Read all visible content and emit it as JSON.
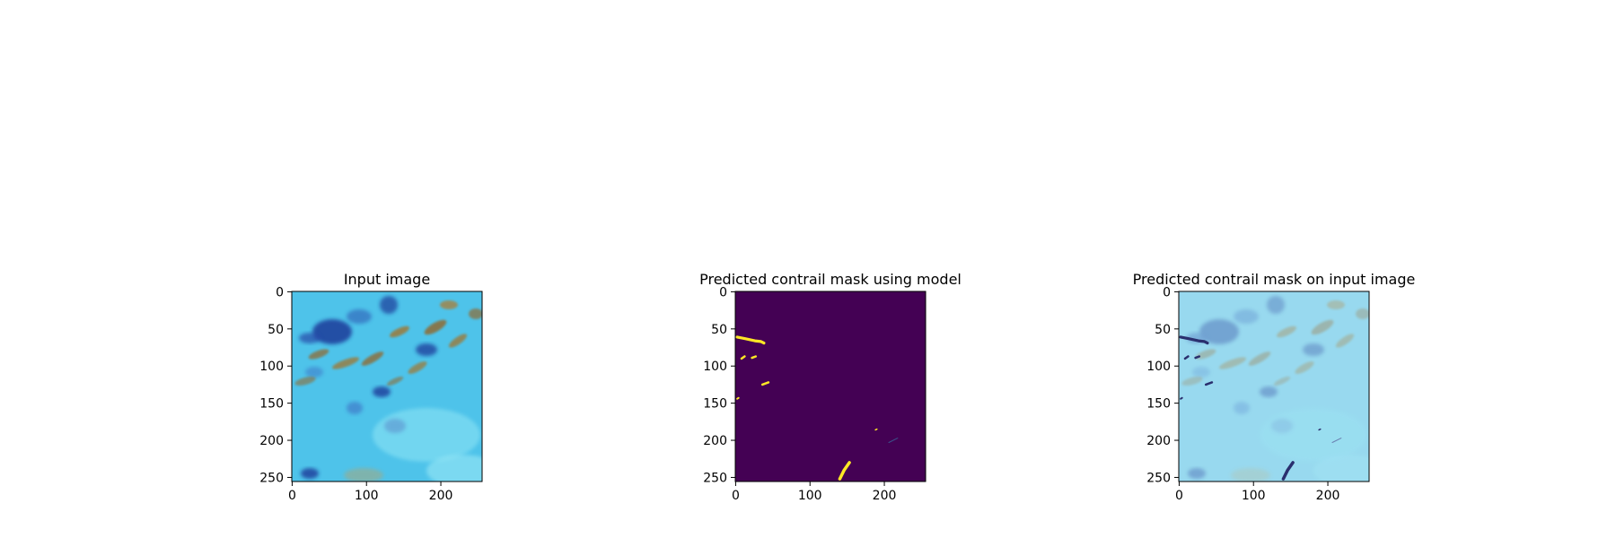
{
  "figure": {
    "panels": [
      {
        "id": "input",
        "title": "Input image"
      },
      {
        "id": "mask",
        "title": "Predicted contrail mask using model"
      },
      {
        "id": "overlay",
        "title": "Predicted contrail mask on input image"
      }
    ]
  },
  "chart_data": [
    {
      "type": "image",
      "title": "Input image",
      "xlim": [
        0,
        255
      ],
      "ylim": [
        255,
        0
      ],
      "xticks": [
        0,
        100,
        200
      ],
      "yticks": [
        0,
        50,
        100,
        150,
        200,
        250
      ],
      "background_color": "#4ec3ea"
    },
    {
      "type": "heatmap",
      "title": "Predicted contrail mask using model",
      "xlim": [
        0,
        255
      ],
      "ylim": [
        255,
        0
      ],
      "xticks": [
        0,
        100,
        200
      ],
      "yticks": [
        0,
        50,
        100,
        150,
        200,
        250
      ],
      "colormap": "viridis",
      "background_color": "#440154",
      "mask_color": "#fde725",
      "contrails": [
        {
          "points": [
            [
              2,
              61
            ],
            [
              12,
              63
            ],
            [
              26,
              66
            ],
            [
              34,
              67
            ],
            [
              38,
              69
            ]
          ],
          "width": 3.2
        },
        {
          "points": [
            [
              8,
              90
            ],
            [
              12,
              87
            ]
          ],
          "width": 2.5
        },
        {
          "points": [
            [
              22,
              89
            ],
            [
              27,
              87
            ]
          ],
          "width": 2.5
        },
        {
          "points": [
            [
              36,
              125
            ],
            [
              44,
              122
            ]
          ],
          "width": 2.5
        },
        {
          "points": [
            [
              2,
              144
            ],
            [
              4,
              143
            ]
          ],
          "width": 2
        },
        {
          "points": [
            [
              140,
              252
            ],
            [
              146,
              240
            ],
            [
              153,
              230
            ]
          ],
          "width": 3.5
        },
        {
          "points": [
            [
              188,
              186
            ],
            [
              190,
              185
            ]
          ],
          "width": 1.5
        },
        {
          "points": [
            [
              206,
              203
            ],
            [
              218,
              197
            ]
          ],
          "width": 1,
          "faint": true
        }
      ]
    },
    {
      "type": "image",
      "title": "Predicted contrail mask on input image",
      "xlim": [
        0,
        255
      ],
      "ylim": [
        255,
        0
      ],
      "xticks": [
        0,
        100,
        200
      ],
      "yticks": [
        0,
        50,
        100,
        150,
        200,
        250
      ],
      "background_color": "#86d2ec",
      "mask_overlay_color": "#2a2f6e"
    }
  ]
}
